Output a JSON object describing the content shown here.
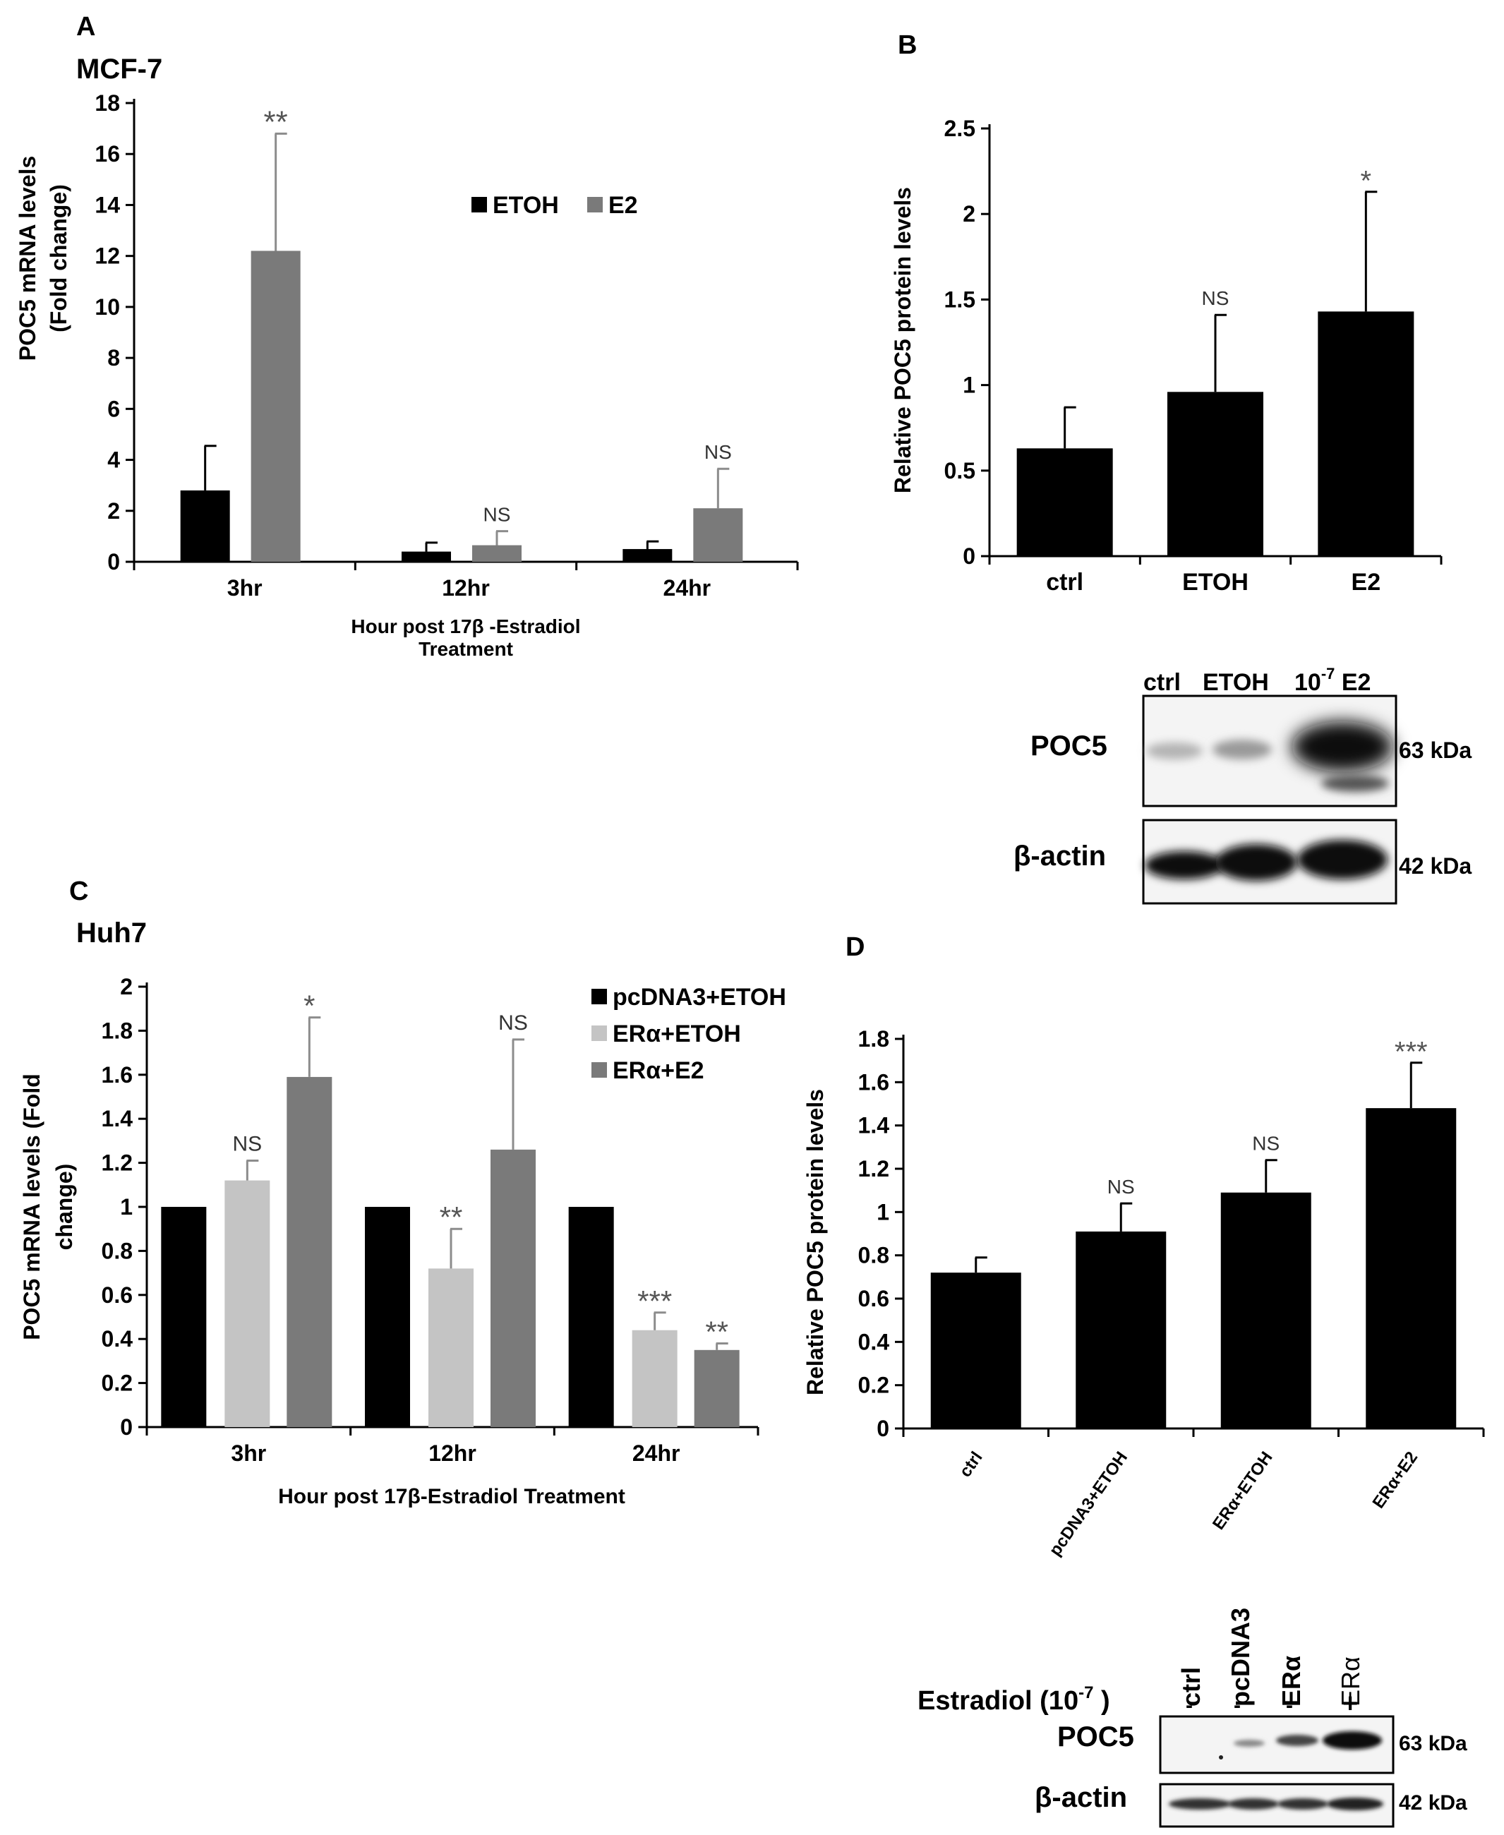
{
  "colors": {
    "black": "#000000",
    "dark_gray": "#7a7a7a",
    "light_gray": "#c4c4c4",
    "err": "#8c8c8c"
  },
  "chart_data": [
    {
      "panel": "A",
      "subtitle": "MCF-7",
      "type": "bar",
      "categories": [
        "3hr",
        "12hr",
        "24hr"
      ],
      "series": [
        {
          "name": "ETOH",
          "color_key": "black",
          "values": [
            2.8,
            0.4,
            0.5
          ],
          "errors": [
            1.75,
            0.35,
            0.3
          ]
        },
        {
          "name": "E2",
          "color_key": "dark_gray",
          "values": [
            12.2,
            0.65,
            2.1
          ],
          "errors": [
            4.6,
            0.55,
            1.55
          ]
        }
      ],
      "annotations": [
        {
          "category": 0,
          "series": 1,
          "text": "**"
        },
        {
          "category": 1,
          "series": 1,
          "text": "NS"
        },
        {
          "category": 2,
          "series": 1,
          "text": "NS"
        }
      ],
      "ylabel_lines": [
        "POC5 mRNA levels",
        "(Fold change)"
      ],
      "xlabel_lines": [
        "Hour post 17β -Estradiol",
        "Treatment"
      ],
      "ylim": [
        0,
        18
      ],
      "ytick_step": 2,
      "legend": "top-center"
    },
    {
      "panel": "B",
      "subtitle": "",
      "type": "bar",
      "categories": [
        "ctrl",
        "ETOH",
        "E2"
      ],
      "series": [
        {
          "name": "protein",
          "color_key": "black",
          "values": [
            0.63,
            0.96,
            1.43
          ],
          "errors": [
            0.24,
            0.45,
            0.7
          ]
        }
      ],
      "annotations": [
        {
          "category": 1,
          "series": 0,
          "text": "NS"
        },
        {
          "category": 2,
          "series": 0,
          "text": "*"
        }
      ],
      "ylabel_lines": [
        "Relative POC5 protein levels"
      ],
      "xlabel_lines": [],
      "ylim": [
        0,
        2.5
      ],
      "ytick_step": 0.5
    },
    {
      "panel": "C",
      "subtitle": "Huh7",
      "type": "bar",
      "categories": [
        "3hr",
        "12hr",
        "24hr"
      ],
      "series": [
        {
          "name": "pcDNA3+ETOH",
          "color_key": "black",
          "values": [
            1.0,
            1.0,
            1.0
          ],
          "errors": [
            0,
            0,
            0
          ]
        },
        {
          "name": "ERα+ETOH",
          "color_key": "light_gray",
          "values": [
            1.12,
            0.72,
            0.44
          ],
          "errors": [
            0.09,
            0.18,
            0.08
          ]
        },
        {
          "name": "ERα+E2",
          "color_key": "dark_gray",
          "values": [
            1.59,
            1.26,
            0.35
          ],
          "errors": [
            0.27,
            0.5,
            0.03
          ]
        }
      ],
      "annotations": [
        {
          "category": 0,
          "series": 1,
          "text": "NS"
        },
        {
          "category": 0,
          "series": 2,
          "text": "*"
        },
        {
          "category": 1,
          "series": 1,
          "text": "**"
        },
        {
          "category": 1,
          "series": 2,
          "text": "NS"
        },
        {
          "category": 2,
          "series": 1,
          "text": "***"
        },
        {
          "category": 2,
          "series": 2,
          "text": "**"
        }
      ],
      "ylabel_lines": [
        "POC5 mRNA levels (Fold",
        "change)"
      ],
      "xlabel_lines": [
        "Hour post 17β-Estradiol Treatment"
      ],
      "ylim": [
        0,
        2
      ],
      "ytick_step": 0.2,
      "legend": "top-right"
    },
    {
      "panel": "D",
      "subtitle": "",
      "type": "bar",
      "categories": [
        "ctrl",
        "pcDNA3+ETOH",
        "ERα+ETOH",
        "ERα+E2"
      ],
      "series": [
        {
          "name": "protein",
          "color_key": "black",
          "values": [
            0.72,
            0.91,
            1.09,
            1.48
          ],
          "errors": [
            0.07,
            0.13,
            0.15,
            0.21
          ]
        }
      ],
      "annotations": [
        {
          "category": 1,
          "series": 0,
          "text": "NS"
        },
        {
          "category": 2,
          "series": 0,
          "text": "NS"
        },
        {
          "category": 3,
          "series": 0,
          "text": "***"
        }
      ],
      "ylabel_lines": [
        "Relative POC5 protein levels"
      ],
      "xlabel_lines": [],
      "ylim": [
        0,
        1.8
      ],
      "ytick_step": 0.2
    }
  ],
  "blots": {
    "B": {
      "lanes": [
        "ctrl",
        "ETOH"
      ],
      "lane3_base": "10",
      "lane3_sup": "-7",
      "lane3_tail": " E2",
      "rows": [
        {
          "label": "POC5",
          "kda": "63 kDa"
        },
        {
          "label": "β-actin",
          "kda": "42 kDa"
        }
      ]
    },
    "D": {
      "lanes": [
        "ctrl",
        "pcDNA3",
        "ERα",
        "ERα"
      ],
      "signs": [
        "-",
        "-",
        "-",
        "+"
      ],
      "estradiol_label": "Estradiol (10",
      "estradiol_sup": "-7",
      "estradiol_close": " )",
      "rows": [
        {
          "label": "POC5",
          "kda": "63 kDa"
        },
        {
          "label": "β-actin",
          "kda": "42 kDa"
        }
      ]
    }
  }
}
